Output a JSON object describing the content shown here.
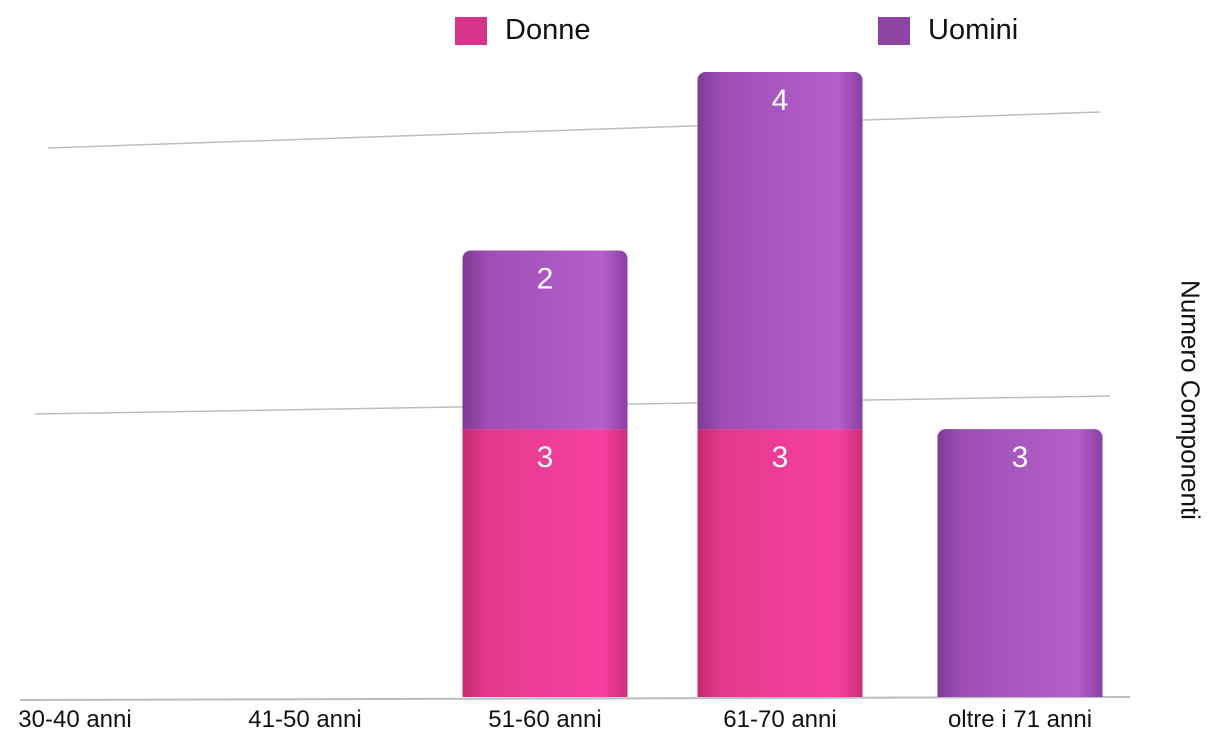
{
  "legend": {
    "donne": "Donne",
    "uomini": "Uomini"
  },
  "colors": {
    "donne": "#e8338f",
    "uomini": "#a24dbd",
    "grid": "#bdbdbd"
  },
  "chart_data": {
    "type": "bar",
    "stacked": true,
    "title": "",
    "xlabel": "",
    "ylabel": "Numero Componenti",
    "ylim": [
      0,
      7
    ],
    "grid": true,
    "legend_position": "top",
    "categories": [
      "30-40 anni",
      "41-50 anni",
      "51-60 anni",
      "61-70 anni",
      "oltre i 71 anni"
    ],
    "series": [
      {
        "name": "Donne",
        "values": [
          0,
          0,
          3,
          3,
          0
        ]
      },
      {
        "name": "Uomini",
        "values": [
          0,
          0,
          2,
          4,
          3
        ]
      }
    ]
  }
}
